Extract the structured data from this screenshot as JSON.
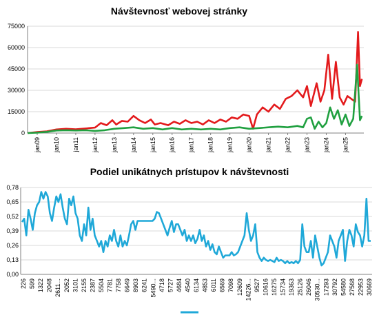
{
  "chart_data": [
    {
      "type": "line",
      "title": "Návštevnosť webovej stránky",
      "xlabel": "",
      "ylabel": "",
      "ylim": [
        0,
        75000
      ],
      "yticks": [
        "0",
        "15000",
        "30000",
        "45000",
        "60000",
        "75000"
      ],
      "x_tick_labels": [
        "jan09",
        "jan10",
        "jan11",
        "jan12",
        "jan13",
        "jan14",
        "jan15",
        "jan16",
        "jan17",
        "jan18",
        "jan19",
        "jan20",
        "jan21",
        "jan22",
        "jan23",
        "jan24",
        "jan25"
      ],
      "x_range_years": [
        2008.5,
        2025.95
      ],
      "grid": true,
      "legend": "none",
      "series": [
        {
          "color": "#e31a1c",
          "points": [
            [
              2008.5,
              0
            ],
            [
              2009.0,
              700
            ],
            [
              2009.5,
              1200
            ],
            [
              2010.0,
              2500
            ],
            [
              2010.5,
              3000
            ],
            [
              2011.0,
              2600
            ],
            [
              2011.5,
              3200
            ],
            [
              2012.0,
              3800
            ],
            [
              2012.3,
              7000
            ],
            [
              2012.6,
              5500
            ],
            [
              2012.9,
              9000
            ],
            [
              2013.1,
              6000
            ],
            [
              2013.4,
              8500
            ],
            [
              2013.7,
              8000
            ],
            [
              2014.0,
              12000
            ],
            [
              2014.3,
              9000
            ],
            [
              2014.6,
              7000
            ],
            [
              2014.9,
              9500
            ],
            [
              2015.1,
              6000
            ],
            [
              2015.4,
              7000
            ],
            [
              2015.8,
              5500
            ],
            [
              2016.1,
              8000
            ],
            [
              2016.4,
              6500
            ],
            [
              2016.7,
              9000
            ],
            [
              2017.0,
              7000
            ],
            [
              2017.3,
              8000
            ],
            [
              2017.6,
              6000
            ],
            [
              2017.9,
              9000
            ],
            [
              2018.2,
              7000
            ],
            [
              2018.5,
              9500
            ],
            [
              2018.8,
              8000
            ],
            [
              2019.1,
              11000
            ],
            [
              2019.4,
              10000
            ],
            [
              2019.7,
              13000
            ],
            [
              2020.0,
              12000
            ],
            [
              2020.2,
              3000
            ],
            [
              2020.4,
              13000
            ],
            [
              2020.7,
              18000
            ],
            [
              2021.0,
              15000
            ],
            [
              2021.3,
              20000
            ],
            [
              2021.6,
              17000
            ],
            [
              2021.9,
              24000
            ],
            [
              2022.2,
              26000
            ],
            [
              2022.5,
              30000
            ],
            [
              2022.8,
              25000
            ],
            [
              2023.0,
              33000
            ],
            [
              2023.2,
              19000
            ],
            [
              2023.5,
              35000
            ],
            [
              2023.7,
              22000
            ],
            [
              2023.9,
              30000
            ],
            [
              2024.1,
              55000
            ],
            [
              2024.3,
              24000
            ],
            [
              2024.5,
              50000
            ],
            [
              2024.7,
              25000
            ],
            [
              2024.9,
              20000
            ],
            [
              2025.1,
              26000
            ],
            [
              2025.3,
              24000
            ],
            [
              2025.5,
              22000
            ],
            [
              2025.65,
              71000
            ],
            [
              2025.75,
              33000
            ],
            [
              2025.85,
              38000
            ]
          ]
        },
        {
          "color": "#20a040",
          "points": [
            [
              2008.5,
              0
            ],
            [
              2009.0,
              300
            ],
            [
              2009.5,
              800
            ],
            [
              2010.0,
              1800
            ],
            [
              2010.5,
              2000
            ],
            [
              2011.0,
              1800
            ],
            [
              2011.5,
              2000
            ],
            [
              2012.0,
              1500
            ],
            [
              2012.5,
              2000
            ],
            [
              2013.0,
              3000
            ],
            [
              2013.5,
              3500
            ],
            [
              2014.0,
              4000
            ],
            [
              2014.5,
              3000
            ],
            [
              2015.0,
              3500
            ],
            [
              2015.5,
              2500
            ],
            [
              2016.0,
              3500
            ],
            [
              2016.5,
              2500
            ],
            [
              2017.0,
              3000
            ],
            [
              2017.5,
              2500
            ],
            [
              2018.0,
              3000
            ],
            [
              2018.5,
              2500
            ],
            [
              2019.0,
              3500
            ],
            [
              2019.5,
              4000
            ],
            [
              2020.0,
              3000
            ],
            [
              2020.5,
              3500
            ],
            [
              2021.0,
              4000
            ],
            [
              2021.5,
              4500
            ],
            [
              2022.0,
              4000
            ],
            [
              2022.5,
              5000
            ],
            [
              2022.8,
              4000
            ],
            [
              2023.0,
              10000
            ],
            [
              2023.2,
              11000
            ],
            [
              2023.4,
              3000
            ],
            [
              2023.6,
              8000
            ],
            [
              2023.8,
              4000
            ],
            [
              2024.0,
              7000
            ],
            [
              2024.2,
              18000
            ],
            [
              2024.4,
              10000
            ],
            [
              2024.6,
              16000
            ],
            [
              2024.8,
              6000
            ],
            [
              2025.0,
              13000
            ],
            [
              2025.2,
              5000
            ],
            [
              2025.4,
              10000
            ],
            [
              2025.6,
              48000
            ],
            [
              2025.75,
              9000
            ],
            [
              2025.85,
              12000
            ]
          ]
        }
      ]
    },
    {
      "type": "line",
      "title": "Podiel unikátnych prístupov k návštevnosti",
      "xlabel": "",
      "ylabel": "",
      "ylim": [
        0,
        0.78
      ],
      "yticks": [
        "0,00",
        "0,13",
        "0,26",
        "0,39",
        "0,52",
        "0,65",
        "0,78"
      ],
      "x_tick_labels": [
        "226",
        "599",
        "1322",
        "2048",
        "2611...",
        "2052",
        "3101",
        "2155",
        "2387",
        "5504",
        "7781",
        "7758",
        "6649",
        "8903",
        "6241",
        "5490...",
        "4718",
        "5727",
        "4684",
        "4540",
        "6134",
        "4853",
        "6011",
        "6569",
        "7098",
        "12609",
        "14226...",
        "9527",
        "10616",
        "16275",
        "15734",
        "19363",
        "25126",
        "26046",
        "30530...",
        "17293",
        "30792",
        "54580",
        "27568",
        "22953",
        "30669"
      ],
      "grid": true,
      "legend": "bottom",
      "series": [
        {
          "color": "#1fa8d8",
          "values": [
            0.47,
            0.5,
            0.35,
            0.58,
            0.5,
            0.4,
            0.55,
            0.62,
            0.65,
            0.74,
            0.68,
            0.74,
            0.7,
            0.55,
            0.48,
            0.6,
            0.7,
            0.65,
            0.72,
            0.6,
            0.5,
            0.45,
            0.68,
            0.62,
            0.7,
            0.55,
            0.5,
            0.35,
            0.3,
            0.45,
            0.35,
            0.6,
            0.4,
            0.5,
            0.35,
            0.3,
            0.25,
            0.3,
            0.2,
            0.3,
            0.25,
            0.35,
            0.3,
            0.4,
            0.3,
            0.25,
            0.35,
            0.25,
            0.3,
            0.26,
            0.35,
            0.45,
            0.48,
            0.4,
            0.48,
            0.48,
            0.48,
            0.48,
            0.48,
            0.48,
            0.48,
            0.48,
            0.5,
            0.56,
            0.55,
            0.5,
            0.45,
            0.4,
            0.35,
            0.42,
            0.48,
            0.38,
            0.45,
            0.45,
            0.4,
            0.35,
            0.4,
            0.3,
            0.35,
            0.3,
            0.35,
            0.28,
            0.32,
            0.4,
            0.3,
            0.35,
            0.25,
            0.3,
            0.22,
            0.27,
            0.2,
            0.18,
            0.25,
            0.2,
            0.15,
            0.17,
            0.17,
            0.17,
            0.2,
            0.17,
            0.18,
            0.2,
            0.25,
            0.3,
            0.35,
            0.55,
            0.4,
            0.3,
            0.35,
            0.45,
            0.2,
            0.15,
            0.12,
            0.15,
            0.13,
            0.12,
            0.13,
            0.12,
            0.11,
            0.15,
            0.12,
            0.13,
            0.12,
            0.1,
            0.12,
            0.1,
            0.11,
            0.1,
            0.12,
            0.1,
            0.13,
            0.45,
            0.25,
            0.2,
            0.2,
            0.3,
            0.15,
            0.35,
            0.25,
            0.15,
            0.08,
            0.1,
            0.15,
            0.2,
            0.35,
            0.3,
            0.25,
            0.15,
            0.3,
            0.35,
            0.4,
            0.12,
            0.3,
            0.4,
            0.35,
            0.25,
            0.45,
            0.38,
            0.35,
            0.25,
            0.35,
            0.68,
            0.3,
            0.3
          ]
        }
      ]
    }
  ]
}
